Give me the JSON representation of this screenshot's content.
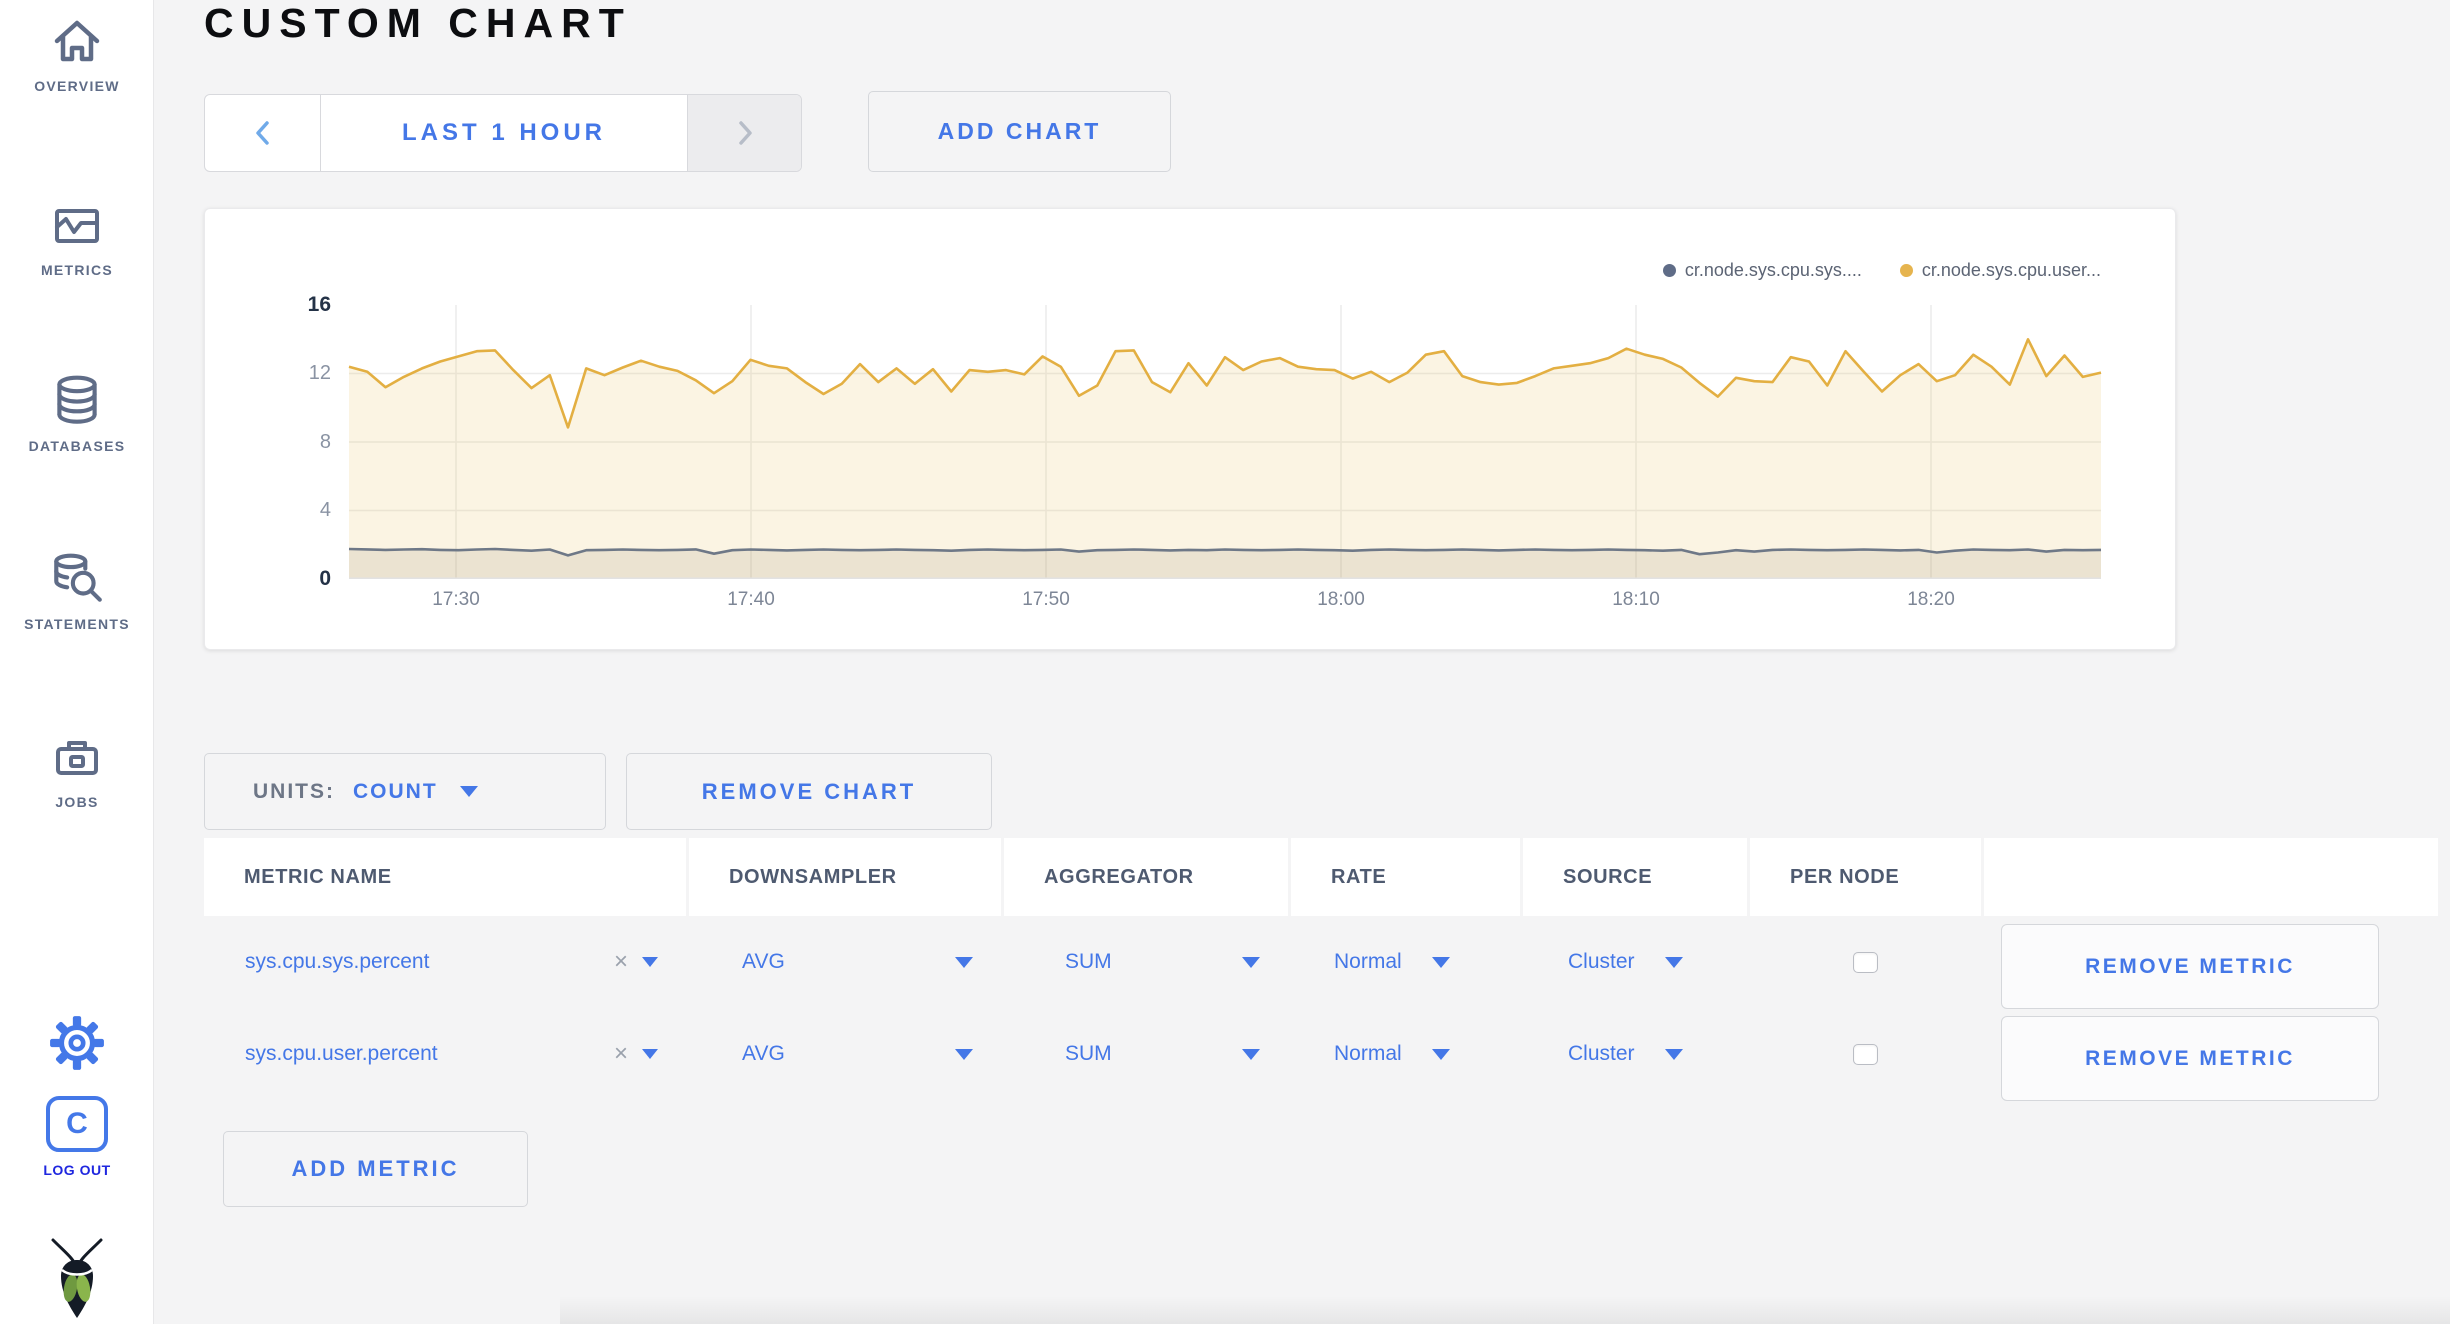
{
  "sidebar": {
    "items": [
      {
        "label": "OVERVIEW",
        "icon": "home-icon"
      },
      {
        "label": "METRICS",
        "icon": "metrics-icon"
      },
      {
        "label": "DATABASES",
        "icon": "database-icon"
      },
      {
        "label": "STATEMENTS",
        "icon": "statements-icon"
      },
      {
        "label": "JOBS",
        "icon": "jobs-icon"
      }
    ],
    "logout_label": "LOG OUT",
    "logo_letter": "C",
    "icon_color": "#5f6c87",
    "accent_color": "#4478e8"
  },
  "header": {
    "title": "CUSTOM CHART"
  },
  "toolbar": {
    "time_range_label": "LAST 1 HOUR",
    "add_chart_label": "ADD CHART"
  },
  "chart_panel": {
    "legend": [
      {
        "label": "cr.node.sys.cpu.sys....",
        "color": "#5f6c87"
      },
      {
        "label": "cr.node.sys.cpu.user...",
        "color": "#e6b44e"
      }
    ]
  },
  "chart_data": {
    "type": "line",
    "title": "",
    "xlabel": "",
    "ylabel": "",
    "ylim": [
      0,
      16
    ],
    "y_ticks": [
      16,
      12,
      8,
      4,
      0
    ],
    "x_ticks": [
      "17:30",
      "17:40",
      "17:50",
      "18:00",
      "18:10",
      "18:20"
    ],
    "x_range": [
      "17:26:30",
      "18:25:40"
    ],
    "grid": true,
    "legend_position": "top-right",
    "series": [
      {
        "name": "cr.node.sys.cpu.sys....",
        "color": "#6e7887",
        "fill": "rgba(120,108,84,0.12)",
        "values": [
          1.75,
          1.73,
          1.7,
          1.72,
          1.74,
          1.7,
          1.68,
          1.72,
          1.75,
          1.7,
          1.65,
          1.72,
          1.38,
          1.68,
          1.7,
          1.72,
          1.7,
          1.68,
          1.7,
          1.73,
          1.48,
          1.68,
          1.72,
          1.7,
          1.67,
          1.7,
          1.72,
          1.7,
          1.68,
          1.7,
          1.72,
          1.7,
          1.68,
          1.65,
          1.7,
          1.72,
          1.7,
          1.68,
          1.7,
          1.72,
          1.6,
          1.68,
          1.7,
          1.72,
          1.7,
          1.67,
          1.7,
          1.68,
          1.72,
          1.7,
          1.68,
          1.7,
          1.72,
          1.7,
          1.68,
          1.65,
          1.7,
          1.72,
          1.7,
          1.68,
          1.7,
          1.72,
          1.7,
          1.67,
          1.7,
          1.72,
          1.7,
          1.68,
          1.7,
          1.72,
          1.7,
          1.68,
          1.65,
          1.7,
          1.45,
          1.55,
          1.68,
          1.6,
          1.7,
          1.72,
          1.7,
          1.68,
          1.7,
          1.72,
          1.7,
          1.67,
          1.7,
          1.55,
          1.65,
          1.72,
          1.7,
          1.68,
          1.72,
          1.6,
          1.7,
          1.68,
          1.7
        ]
      },
      {
        "name": "cr.node.sys.cpu.user...",
        "color": "#e3af42",
        "fill": "rgba(233,185,80,0.16)",
        "values": [
          12.4,
          12.1,
          11.2,
          11.8,
          12.3,
          12.7,
          13.0,
          13.3,
          13.35,
          12.2,
          11.15,
          11.9,
          8.85,
          12.3,
          11.9,
          12.35,
          12.75,
          12.4,
          12.15,
          11.6,
          10.85,
          11.55,
          12.8,
          12.45,
          12.3,
          11.5,
          10.8,
          11.4,
          12.55,
          11.5,
          12.3,
          11.4,
          12.25,
          10.95,
          12.2,
          12.1,
          12.2,
          11.95,
          13.0,
          12.4,
          10.7,
          11.3,
          13.3,
          13.35,
          11.5,
          10.9,
          12.6,
          11.3,
          12.95,
          12.2,
          12.7,
          12.9,
          12.4,
          12.25,
          12.2,
          11.7,
          12.1,
          11.5,
          12.05,
          13.1,
          13.3,
          11.85,
          11.5,
          11.35,
          11.45,
          11.85,
          12.3,
          12.45,
          12.6,
          12.9,
          13.45,
          13.1,
          12.85,
          12.35,
          11.45,
          10.65,
          11.75,
          11.55,
          11.5,
          12.95,
          12.7,
          11.3,
          13.3,
          12.1,
          10.95,
          11.9,
          12.55,
          11.55,
          11.9,
          13.1,
          12.4,
          11.35,
          14.0,
          11.85,
          13.05,
          11.8,
          12.05
        ]
      }
    ]
  },
  "chart_controls": {
    "units_label": "UNITS:",
    "units_value": "COUNT",
    "remove_chart_label": "REMOVE CHART"
  },
  "metrics_table": {
    "headers": [
      "METRIC NAME",
      "DOWNSAMPLER",
      "AGGREGATOR",
      "RATE",
      "SOURCE",
      "PER NODE",
      ""
    ],
    "clear_icon": "×",
    "rows": [
      {
        "metric_name": "sys.cpu.sys.percent",
        "downsampler": "AVG",
        "aggregator": "SUM",
        "rate": "Normal",
        "source": "Cluster",
        "per_node": false,
        "remove_label": "REMOVE METRIC"
      },
      {
        "metric_name": "sys.cpu.user.percent",
        "downsampler": "AVG",
        "aggregator": "SUM",
        "rate": "Normal",
        "source": "Cluster",
        "per_node": false,
        "remove_label": "REMOVE METRIC"
      }
    ],
    "add_metric_label": "ADD METRIC"
  }
}
